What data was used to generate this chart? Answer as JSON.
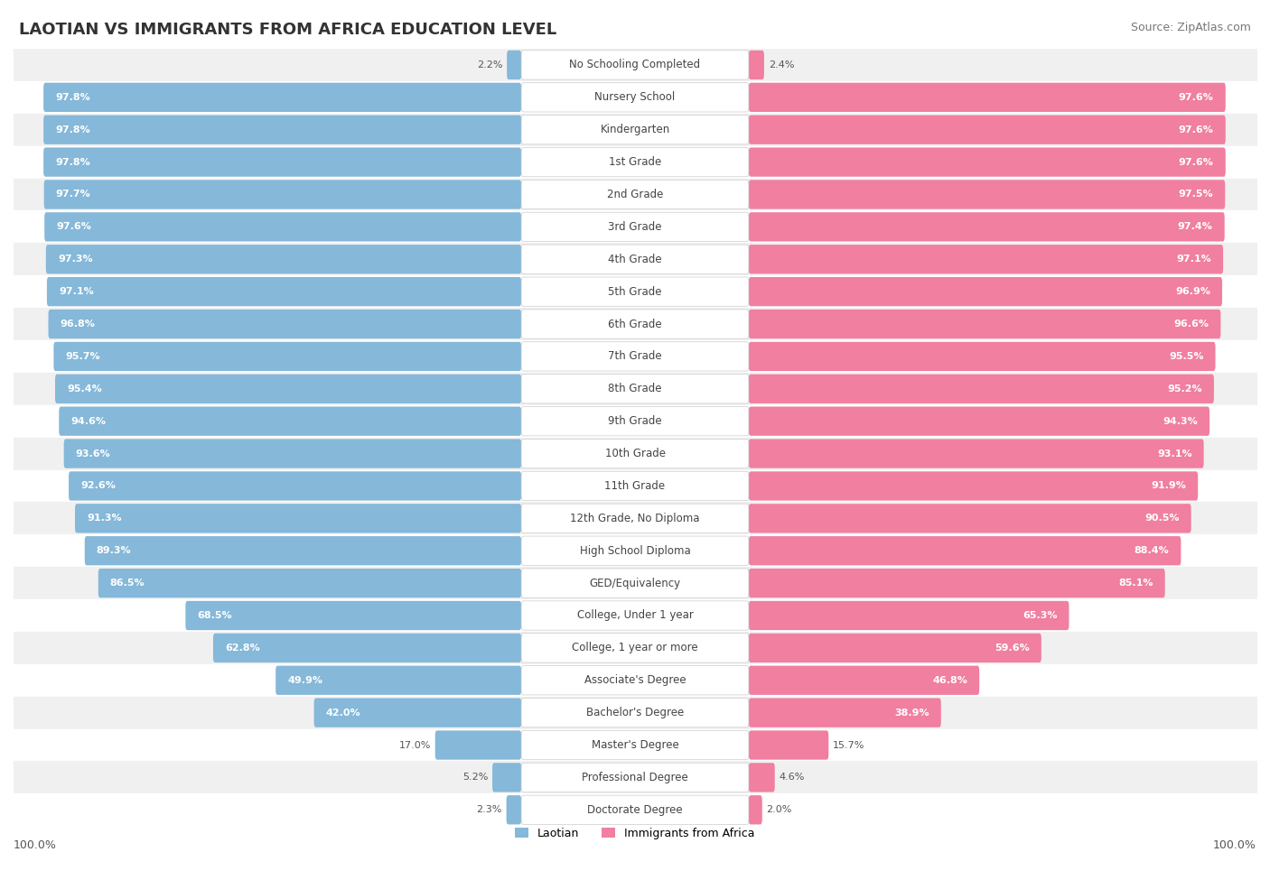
{
  "title": "LAOTIAN VS IMMIGRANTS FROM AFRICA EDUCATION LEVEL",
  "source": "Source: ZipAtlas.com",
  "categories": [
    "No Schooling Completed",
    "Nursery School",
    "Kindergarten",
    "1st Grade",
    "2nd Grade",
    "3rd Grade",
    "4th Grade",
    "5th Grade",
    "6th Grade",
    "7th Grade",
    "8th Grade",
    "9th Grade",
    "10th Grade",
    "11th Grade",
    "12th Grade, No Diploma",
    "High School Diploma",
    "GED/Equivalency",
    "College, Under 1 year",
    "College, 1 year or more",
    "Associate's Degree",
    "Bachelor's Degree",
    "Master's Degree",
    "Professional Degree",
    "Doctorate Degree"
  ],
  "laotian": [
    2.2,
    97.8,
    97.8,
    97.8,
    97.7,
    97.6,
    97.3,
    97.1,
    96.8,
    95.7,
    95.4,
    94.6,
    93.6,
    92.6,
    91.3,
    89.3,
    86.5,
    68.5,
    62.8,
    49.9,
    42.0,
    17.0,
    5.2,
    2.3
  ],
  "africa": [
    2.4,
    97.6,
    97.6,
    97.6,
    97.5,
    97.4,
    97.1,
    96.9,
    96.6,
    95.5,
    95.2,
    94.3,
    93.1,
    91.9,
    90.5,
    88.4,
    85.1,
    65.3,
    59.6,
    46.8,
    38.9,
    15.7,
    4.6,
    2.0
  ],
  "laotian_color": "#85b8d9",
  "africa_color": "#f07fa0",
  "row_bg_even": "#f0f0f0",
  "row_bg_odd": "#ffffff",
  "title_fontsize": 13,
  "source_fontsize": 9,
  "label_fontsize": 8.5,
  "value_fontsize": 8,
  "legend_fontsize": 9,
  "axis_fontsize": 9
}
